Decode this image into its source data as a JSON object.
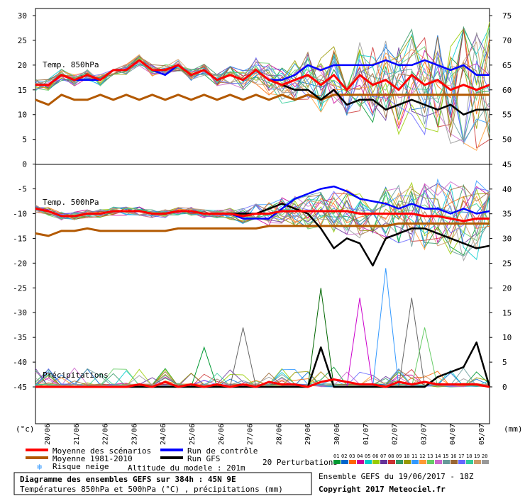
{
  "chart_data": {
    "type": "line",
    "title": "Diagramme des ensembles GEFS sur 384h : 45N 9E",
    "subtitle": "Températures 850hPa et 500hPa (°C) , précipitations (mm)",
    "left_axis_label": "(°c)",
    "right_axis_label": "(mm)",
    "left_ticks": [
      "30",
      "25",
      "20",
      "15",
      "10",
      "5",
      "0",
      "-5",
      "-10",
      "-15",
      "-20",
      "-25",
      "-30",
      "-35",
      "-40",
      "-45"
    ],
    "right_ticks_top": [
      "75",
      "70",
      "65",
      "60",
      "55",
      "50"
    ],
    "right_ticks_bottom": [
      "45",
      "40",
      "35",
      "30",
      "25",
      "20",
      "15",
      "10",
      "5",
      "0"
    ],
    "date_labels": [
      "20/06",
      "21/06",
      "22/06",
      "23/06",
      "24/06",
      "25/06",
      "26/06",
      "27/06",
      "28/06",
      "29/06",
      "30/06",
      "01/07",
      "02/07",
      "03/07",
      "04/07",
      "05/07"
    ],
    "panels": [
      {
        "name": "Temp. 850hPa",
        "ylim": [
          0,
          30
        ]
      },
      {
        "name": "Temp. 500hPa",
        "ylim": [
          -20,
          -5
        ]
      },
      {
        "name": "Précipitations",
        "ylim": [
          0,
          20
        ],
        "units": "mm"
      }
    ],
    "series": [
      {
        "name": "Moyenne des scénarios",
        "color": "#ff0000",
        "panel": "Temp. 850hPa",
        "values": [
          16,
          16,
          18,
          17,
          18,
          17,
          19,
          19,
          21,
          19,
          19,
          20,
          18,
          19,
          17,
          18,
          17,
          19,
          17,
          16,
          17,
          18,
          16,
          18,
          15,
          18,
          16,
          17,
          15,
          18,
          16,
          17,
          15,
          16,
          15,
          16
        ]
      },
      {
        "name": "Run de contrôle",
        "color": "#0000ff",
        "panel": "Temp. 850hPa",
        "values": [
          16,
          16,
          18,
          17,
          17,
          17,
          19,
          19,
          21,
          19,
          18,
          20,
          18,
          19,
          17,
          18,
          17,
          19,
          17,
          17,
          18,
          20,
          19,
          20,
          20,
          20,
          20,
          21,
          20,
          20,
          21,
          20,
          19,
          20,
          18,
          18
        ]
      },
      {
        "name": "Run GFS",
        "color": "#000000",
        "panel": "Temp. 850hPa",
        "values": [
          16,
          16,
          18,
          17,
          17,
          17,
          19,
          19,
          21,
          19,
          19,
          20,
          18,
          19,
          17,
          18,
          17,
          19,
          17,
          16,
          15,
          15,
          13,
          15,
          12,
          13,
          13,
          11,
          12,
          13,
          12,
          11,
          12,
          10,
          11,
          11
        ]
      },
      {
        "name": "Moyenne 1981-2010",
        "color": "#b35900",
        "panel": "Temp. 850hPa",
        "values": [
          13,
          12,
          14,
          13,
          13,
          14,
          13,
          14,
          13,
          14,
          13,
          14,
          13,
          14,
          13,
          14,
          13,
          14,
          13,
          14,
          13,
          14,
          13,
          14,
          14,
          14,
          14,
          14,
          14,
          14,
          14,
          14,
          14,
          14,
          14,
          14
        ]
      },
      {
        "name": "Moyenne des scénarios",
        "color": "#ff0000",
        "panel": "Temp. 500hPa",
        "values": [
          -9,
          -9.5,
          -10.5,
          -10.5,
          -10,
          -10,
          -9.5,
          -9.5,
          -9.5,
          -10,
          -10,
          -9.5,
          -9.5,
          -10,
          -10,
          -10,
          -10.5,
          -10,
          -10,
          -9.5,
          -9.5,
          -9.5,
          -9.5,
          -9.5,
          -9.5,
          -10,
          -10,
          -10,
          -10,
          -10,
          -10.5,
          -10.5,
          -11,
          -11.5,
          -11,
          -11
        ]
      },
      {
        "name": "Run de contrôle",
        "color": "#0000ff",
        "panel": "Temp. 500hPa",
        "values": [
          -9,
          -9.5,
          -10.5,
          -10.5,
          -10,
          -10,
          -9.5,
          -9.5,
          -9.5,
          -10,
          -10,
          -9.5,
          -9.5,
          -10,
          -10,
          -10,
          -11,
          -11,
          -11,
          -9,
          -7,
          -6,
          -5,
          -4.5,
          -5.5,
          -7,
          -7.5,
          -8,
          -9,
          -8,
          -9,
          -9,
          -10,
          -9,
          -10,
          -9.5
        ]
      },
      {
        "name": "Run GFS",
        "color": "#000000",
        "panel": "Temp. 500hPa",
        "values": [
          -9,
          -9.5,
          -10.5,
          -10.5,
          -10,
          -10,
          -9.5,
          -9.5,
          -9.5,
          -10,
          -10,
          -9.5,
          -9.5,
          -10,
          -10,
          -10,
          -10,
          -10,
          -9,
          -8,
          -9,
          -10,
          -13,
          -17,
          -15,
          -16,
          -20.5,
          -15,
          -14,
          -13,
          -13,
          -14,
          -15,
          -16,
          -17,
          -16.5
        ]
      },
      {
        "name": "Moyenne 1981-2010",
        "color": "#b35900",
        "panel": "Temp. 500hPa",
        "values": [
          -14,
          -14.5,
          -13.5,
          -13.5,
          -13,
          -13.5,
          -13.5,
          -13.5,
          -13.5,
          -13.5,
          -13.5,
          -13,
          -13,
          -13,
          -13,
          -13,
          -13,
          -13,
          -12.5,
          -12.5,
          -12.5,
          -12.5,
          -12.5,
          -12.5,
          -12.5,
          -12.5,
          -12.5,
          -12.5,
          -12,
          -12,
          -12,
          -12,
          -12,
          -12,
          -12,
          -12
        ]
      },
      {
        "name": "Run GFS",
        "color": "#000000",
        "panel": "Précipitations",
        "values": [
          0,
          0,
          0,
          0,
          0,
          0,
          0,
          0,
          0,
          0,
          0,
          0,
          0,
          0,
          0,
          0,
          0,
          0,
          0,
          0,
          0,
          0,
          8,
          0,
          0,
          0,
          0,
          0,
          0,
          0,
          0,
          2,
          3,
          4,
          9,
          0
        ]
      },
      {
        "name": "Moyenne des scénarios",
        "color": "#ff0000",
        "panel": "Précipitations",
        "values": [
          0,
          0,
          0,
          0,
          0,
          0,
          0,
          0,
          0.5,
          0,
          1,
          0,
          0.5,
          0,
          0.5,
          0,
          0.5,
          0,
          1,
          0.5,
          0.5,
          0,
          1,
          1.5,
          1,
          0.5,
          0.5,
          0,
          1,
          0.5,
          1,
          0.5,
          0.5,
          0.5,
          0.5,
          0
        ]
      }
    ],
    "perturbations": {
      "label": "20 Perturbations",
      "ids": [
        "01",
        "02",
        "03",
        "04",
        "05",
        "06",
        "07",
        "08",
        "09",
        "10",
        "11",
        "12",
        "13",
        "14",
        "15",
        "16",
        "17",
        "18",
        "19",
        "20"
      ],
      "colors": [
        "#009933",
        "#0066cc",
        "#ff6600",
        "#cc0099",
        "#00cccc",
        "#99cc00",
        "#663399",
        "#cc3333",
        "#339966",
        "#999900",
        "#3399ff",
        "#ff9933",
        "#66cc66",
        "#cc66cc",
        "#669999",
        "#996633",
        "#6666ff",
        "#33cc99",
        "#cc9966",
        "#999999"
      ]
    },
    "precip_spikes": [
      {
        "x": 13,
        "value": 8,
        "color": "#009933"
      },
      {
        "x": 16,
        "value": 12,
        "color": "#666666"
      },
      {
        "x": 22,
        "value": 20,
        "color": "#006600"
      },
      {
        "x": 25,
        "value": 18,
        "color": "#cc00cc"
      },
      {
        "x": 27,
        "value": 24,
        "color": "#3399ff"
      },
      {
        "x": 29,
        "value": 18,
        "color": "#666666"
      },
      {
        "x": 30,
        "value": 12,
        "color": "#66cc66"
      }
    ]
  },
  "legend": {
    "items": [
      {
        "label": "Moyenne des scénarios",
        "color": "#ff0000"
      },
      {
        "label": "Run de contrôle",
        "color": "#0000ff"
      },
      {
        "label": "Moyenne 1981-2010",
        "color": "#b35900"
      },
      {
        "label": "Run GFS",
        "color": "#000000"
      }
    ],
    "snow_label": "Risque neige",
    "altitude": "Altitude du modele : 201m"
  },
  "footer": {
    "title": "Diagramme des ensembles GEFS sur 384h : 45N 9E",
    "subtitle": "Températures 850hPa et 500hPa (°C) , précipitations (mm)",
    "ensemble": "Ensemble GEFS du 19/06/2017 - 18Z",
    "copyright": "Copyright 2017 Meteociel.fr"
  }
}
